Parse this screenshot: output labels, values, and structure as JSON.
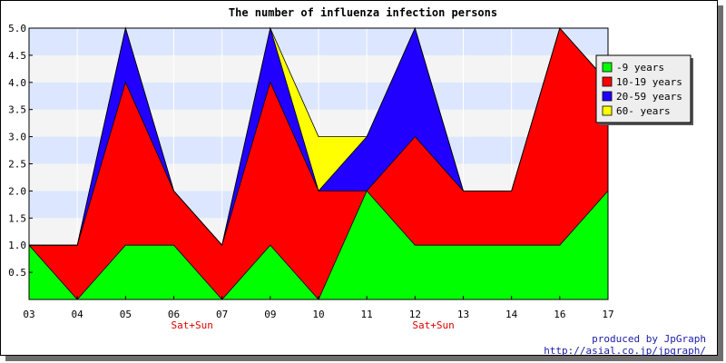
{
  "chart_data": {
    "type": "area",
    "stacked": true,
    "title": "The number of influenza infection persons",
    "categories": [
      "03",
      "04",
      "05",
      "06",
      "07",
      "09",
      "10",
      "11",
      "12",
      "13",
      "14",
      "16",
      "17"
    ],
    "category_notes": [
      "",
      "",
      "",
      "Sat+Sun",
      "",
      "",
      "",
      "",
      "Sat+Sun",
      "",
      "",
      "",
      ""
    ],
    "yticks": [
      "0.5",
      "1.0",
      "1.5",
      "2.0",
      "2.5",
      "3.0",
      "3.5",
      "4.0",
      "4.5",
      "5.0"
    ],
    "ylim": [
      0,
      5
    ],
    "series": [
      {
        "name": "-9 years",
        "color": "#00ff00",
        "values": [
          1,
          0,
          1,
          1,
          0,
          1,
          0,
          2,
          1,
          1,
          1,
          1,
          2
        ]
      },
      {
        "name": "10-19 years",
        "color": "#ff0000",
        "values": [
          0,
          1,
          3,
          1,
          1,
          3,
          2,
          0,
          2,
          1,
          1,
          4,
          2
        ]
      },
      {
        "name": "20-59 years",
        "color": "#2200ff",
        "values": [
          0,
          0,
          1,
          0,
          0,
          1,
          0,
          1,
          2,
          0,
          0,
          0,
          0
        ]
      },
      {
        "name": "60- years",
        "color": "#ffff00",
        "values": [
          0,
          0,
          0,
          0,
          0,
          0,
          1,
          0,
          0,
          0,
          0,
          0,
          0
        ]
      }
    ],
    "band_colors": [
      "#f4f4f4",
      "#dce6ff"
    ],
    "legend_position": "right"
  },
  "credit": {
    "line1": "produced by JpGraph",
    "line2": "http://asial.co.jp/jpgraph/"
  }
}
